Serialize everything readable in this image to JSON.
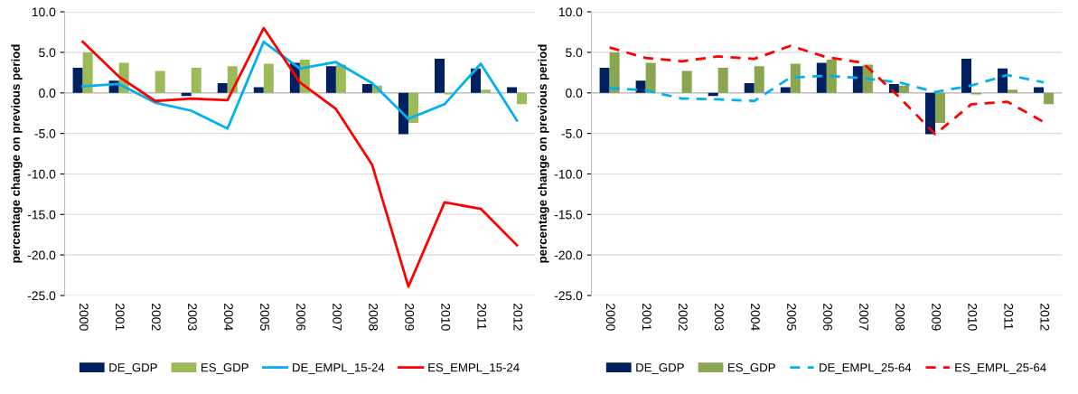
{
  "chart_data": [
    {
      "type": "bar",
      "ylabel": "percentage change on previous period",
      "categories": [
        "2000",
        "2001",
        "2002",
        "2003",
        "2004",
        "2005",
        "2006",
        "2007",
        "2008",
        "2009",
        "2010",
        "2011",
        "2012"
      ],
      "series": [
        {
          "name": "DE_GDP",
          "color": "#002060",
          "values": [
            3.1,
            1.5,
            0.0,
            -0.4,
            1.2,
            0.7,
            3.7,
            3.3,
            1.1,
            -5.1,
            4.2,
            3.0,
            0.7
          ]
        },
        {
          "name": "ES_GDP",
          "color": "#9bbb59",
          "values": [
            5.0,
            3.7,
            2.7,
            3.1,
            3.3,
            3.6,
            4.1,
            3.5,
            0.9,
            -3.7,
            -0.2,
            0.4,
            -1.4
          ]
        },
        {
          "name": "DE_EMPL_15-24",
          "type": "line",
          "line_style": "solid",
          "color": "#00b0f0",
          "values": [
            0.8,
            1.1,
            -1.2,
            -2.2,
            -4.4,
            6.3,
            3.0,
            3.8,
            1.2,
            -3.2,
            -1.4,
            3.6,
            -3.4
          ]
        },
        {
          "name": "ES_EMPL_15-24",
          "type": "line",
          "line_style": "solid",
          "color": "#ff0000",
          "values": [
            6.3,
            2.0,
            -1.0,
            -0.7,
            -0.9,
            8.0,
            1.3,
            -2.0,
            -8.9,
            -23.9,
            -13.5,
            -14.3,
            -18.8
          ]
        }
      ],
      "ylim": [
        -25,
        10
      ],
      "yticks": [
        {
          "value": -25,
          "label": "-25.0"
        },
        {
          "value": -20,
          "label": "-20.0"
        },
        {
          "value": -15,
          "label": "-15.0"
        },
        {
          "value": -10,
          "label": "-10.0"
        },
        {
          "value": -5,
          "label": "-5.0"
        },
        {
          "value": 0,
          "label": "0.0"
        },
        {
          "value": 5,
          "label": "5.0"
        },
        {
          "value": 10,
          "label": "10.0"
        }
      ],
      "grid": "y",
      "legend": "bottom"
    },
    {
      "type": "bar",
      "ylabel": "percentage change on previous period",
      "categories": [
        "2000",
        "2001",
        "2002",
        "2003",
        "2004",
        "2005",
        "2006",
        "2007",
        "2008",
        "2009",
        "2010",
        "2011",
        "2012"
      ],
      "series": [
        {
          "name": "DE_GDP",
          "color": "#002060",
          "values": [
            3.1,
            1.5,
            0.0,
            -0.4,
            1.2,
            0.7,
            3.7,
            3.3,
            1.1,
            -5.1,
            4.2,
            3.0,
            0.7
          ]
        },
        {
          "name": "ES_GDP",
          "color": "#8aa650",
          "values": [
            5.0,
            3.7,
            2.7,
            3.1,
            3.3,
            3.6,
            4.1,
            3.5,
            0.9,
            -3.7,
            -0.2,
            0.4,
            -1.4
          ]
        },
        {
          "name": "DE_EMPL_25-64",
          "type": "line",
          "line_style": "dashed",
          "color": "#00b0f0",
          "values": [
            0.6,
            0.3,
            -0.7,
            -0.8,
            -1.0,
            1.9,
            2.1,
            1.8,
            1.3,
            0.1,
            0.9,
            2.2,
            1.3
          ]
        },
        {
          "name": "ES_EMPL_25-64",
          "type": "line",
          "line_style": "dashed",
          "color": "#ff0000",
          "values": [
            5.6,
            4.3,
            3.9,
            4.5,
            4.2,
            5.8,
            4.4,
            3.7,
            -0.5,
            -5.1,
            -1.4,
            -1.1,
            -3.6
          ]
        }
      ],
      "ylim": [
        -25,
        10
      ],
      "yticks": [
        {
          "value": -25,
          "label": "-25.0"
        },
        {
          "value": -20,
          "label": "-20.0"
        },
        {
          "value": -15,
          "label": "-15.0"
        },
        {
          "value": -10,
          "label": "-10.0"
        },
        {
          "value": -5,
          "label": "-5.0"
        },
        {
          "value": 0,
          "label": "0.0"
        },
        {
          "value": 5,
          "label": "5.0"
        },
        {
          "value": 10,
          "label": "10.0"
        }
      ],
      "grid": "y",
      "legend": "bottom"
    }
  ]
}
